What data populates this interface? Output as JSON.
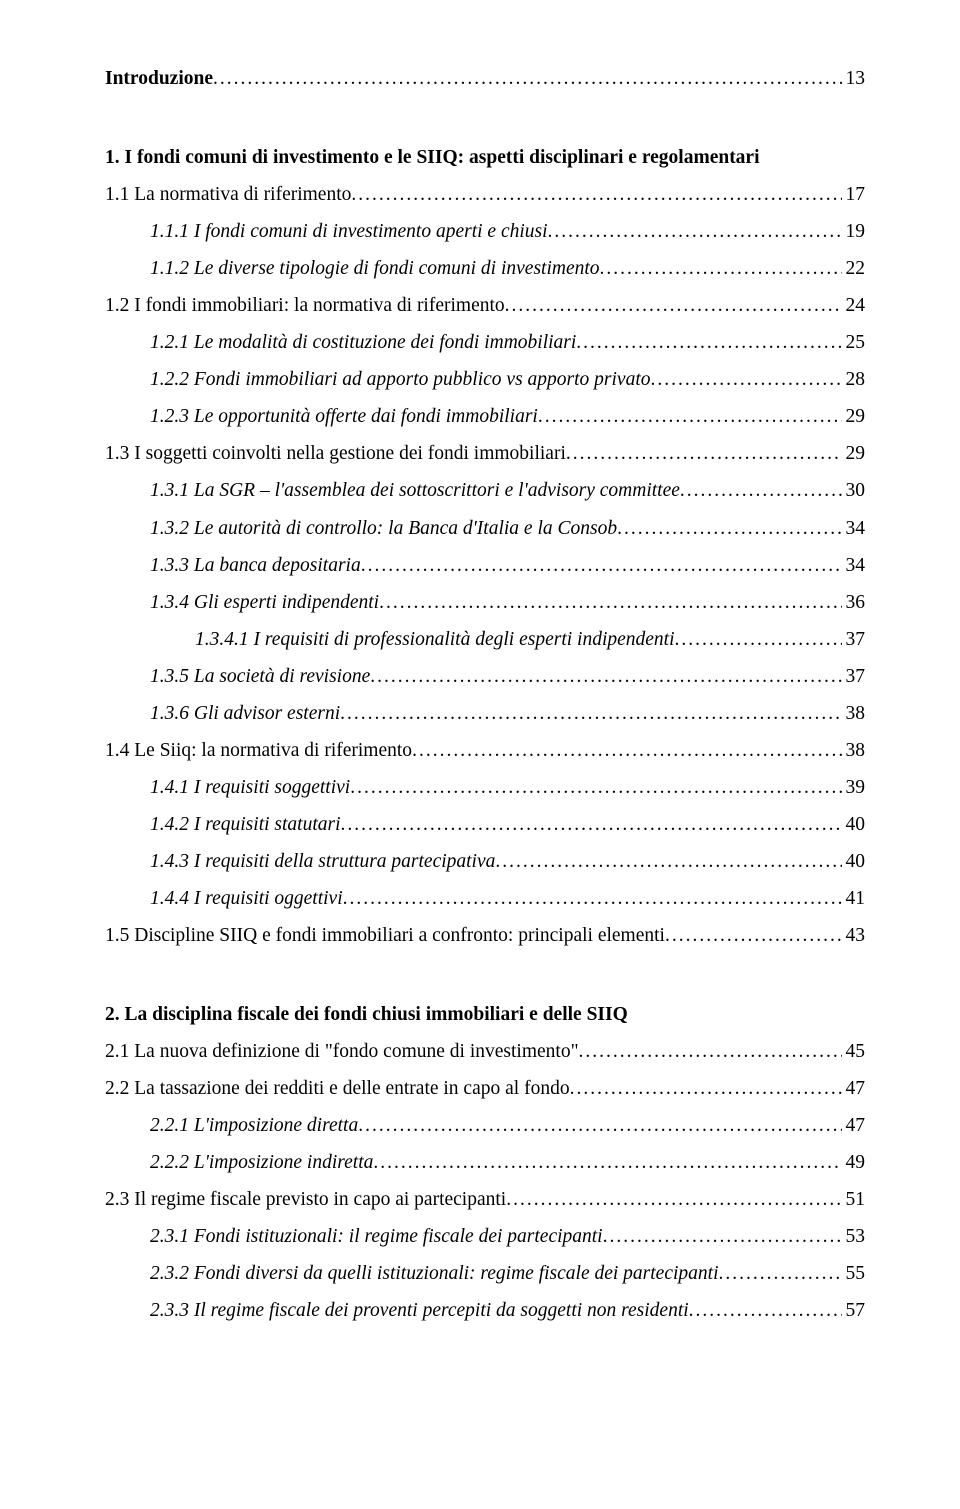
{
  "font_family": "Times New Roman",
  "text_color": "#000000",
  "background_color": "#ffffff",
  "base_font_size_pt": 15,
  "entries": [
    {
      "text": "Introduzione",
      "page": "13",
      "level": 0,
      "bold": true,
      "italic": false
    },
    {
      "gap": "lg"
    },
    {
      "text": "1.   I fondi comuni di investimento e le SIIQ: aspetti disciplinari e regolamentari",
      "level": 0,
      "bold": true,
      "italic": false,
      "no_leader": true
    },
    {
      "text": "1.1   La normativa di riferimento",
      "page": "17",
      "level": 1,
      "bold": false,
      "italic": false
    },
    {
      "text": "1.1.1   I fondi comuni di investimento aperti e chiusi",
      "page": "19",
      "level": 2,
      "bold": false,
      "italic": true
    },
    {
      "text": "1.1.2   Le diverse tipologie di fondi comuni di investimento",
      "page": "22",
      "level": 2,
      "bold": false,
      "italic": true
    },
    {
      "text": "1.2   I fondi immobiliari: la normativa di riferimento",
      "page": "24",
      "level": 1,
      "bold": false,
      "italic": false
    },
    {
      "text": "1.2.1   Le modalità di costituzione dei fondi immobiliari",
      "page": "25",
      "level": 2,
      "bold": false,
      "italic": true
    },
    {
      "text": "1.2.2   Fondi immobiliari ad apporto pubblico vs apporto privato",
      "page": "28",
      "level": 2,
      "bold": false,
      "italic": true
    },
    {
      "text": "1.2.3   Le opportunità offerte dai fondi immobiliari",
      "page": "29",
      "level": 2,
      "bold": false,
      "italic": true
    },
    {
      "text": "1.3   I soggetti coinvolti nella gestione dei fondi immobiliari",
      "page": "29",
      "level": 1,
      "bold": false,
      "italic": false
    },
    {
      "text": "1.3.1   La SGR – l'assemblea dei sottoscrittori e l'advisory committee",
      "page": "30",
      "level": 2,
      "bold": false,
      "italic": true
    },
    {
      "text": "1.3.2   Le autorità di controllo: la Banca d'Italia e la Consob",
      "page": "34",
      "level": 2,
      "bold": false,
      "italic": true
    },
    {
      "text": "1.3.3   La banca depositaria",
      "page": "34",
      "level": 2,
      "bold": false,
      "italic": true
    },
    {
      "text": "1.3.4  Gli esperti indipendenti",
      "page": "36",
      "level": 2,
      "bold": false,
      "italic": true
    },
    {
      "text": "1.3.4.1   I requisiti di professionalità degli esperti indipendenti",
      "page": "37",
      "level": 3,
      "bold": false,
      "italic": true
    },
    {
      "text": "1.3.5   La società di revisione",
      "page": "37",
      "level": 2,
      "bold": false,
      "italic": true
    },
    {
      "text": "1.3.6   Gli advisor esterni",
      "page": "38",
      "level": 2,
      "bold": false,
      "italic": true
    },
    {
      "text": "1.4   Le Siiq: la normativa di riferimento",
      "page": "38",
      "level": 1,
      "bold": false,
      "italic": false
    },
    {
      "text": "1.4.1   I requisiti soggettivi",
      "page": "39",
      "level": 2,
      "bold": false,
      "italic": true
    },
    {
      "text": "1.4.2   I requisiti statutari",
      "page": "40",
      "level": 2,
      "bold": false,
      "italic": true
    },
    {
      "text": "1.4.3   I requisiti della struttura partecipativa",
      "page": "40",
      "level": 2,
      "bold": false,
      "italic": true
    },
    {
      "text": "1.4.4   I requisiti oggettivi",
      "page": "41",
      "level": 2,
      "bold": false,
      "italic": true
    },
    {
      "text": "1.5   Discipline SIIQ e fondi immobiliari a confronto: principali elementi",
      "page": "43",
      "level": 1,
      "bold": false,
      "italic": false
    },
    {
      "gap": "lg"
    },
    {
      "text": "2.   La disciplina fiscale dei fondi chiusi immobiliari e delle SIIQ",
      "level": 0,
      "bold": true,
      "italic": false,
      "no_leader": true
    },
    {
      "text": "2.1   La nuova definizione di \"fondo comune di investimento\" ",
      "page": "45",
      "level": 1,
      "bold": false,
      "italic": false
    },
    {
      "text": "2.2   La tassazione dei redditi e delle entrate in capo al fondo",
      "page": "47",
      "level": 1,
      "bold": false,
      "italic": false
    },
    {
      "text": "2.2.1   L'imposizione diretta",
      "page": "47",
      "level": 2,
      "bold": false,
      "italic": true
    },
    {
      "text": "2.2.2   L'imposizione indiretta",
      "page": "49",
      "level": 2,
      "bold": false,
      "italic": true
    },
    {
      "text": "2.3   Il regime fiscale previsto in capo ai partecipanti",
      "page": "51",
      "level": 1,
      "bold": false,
      "italic": false
    },
    {
      "text": "2.3.1   Fondi istituzionali: il regime fiscale dei partecipanti",
      "page": "53",
      "level": 2,
      "bold": false,
      "italic": true
    },
    {
      "text": "2.3.2   Fondi diversi da quelli istituzionali: regime fiscale dei partecipanti",
      "page": "55",
      "level": 2,
      "bold": false,
      "italic": true
    },
    {
      "text": "2.3.3   Il regime fiscale dei proventi percepiti da soggetti non residenti",
      "page": "57",
      "level": 2,
      "bold": false,
      "italic": true
    }
  ]
}
